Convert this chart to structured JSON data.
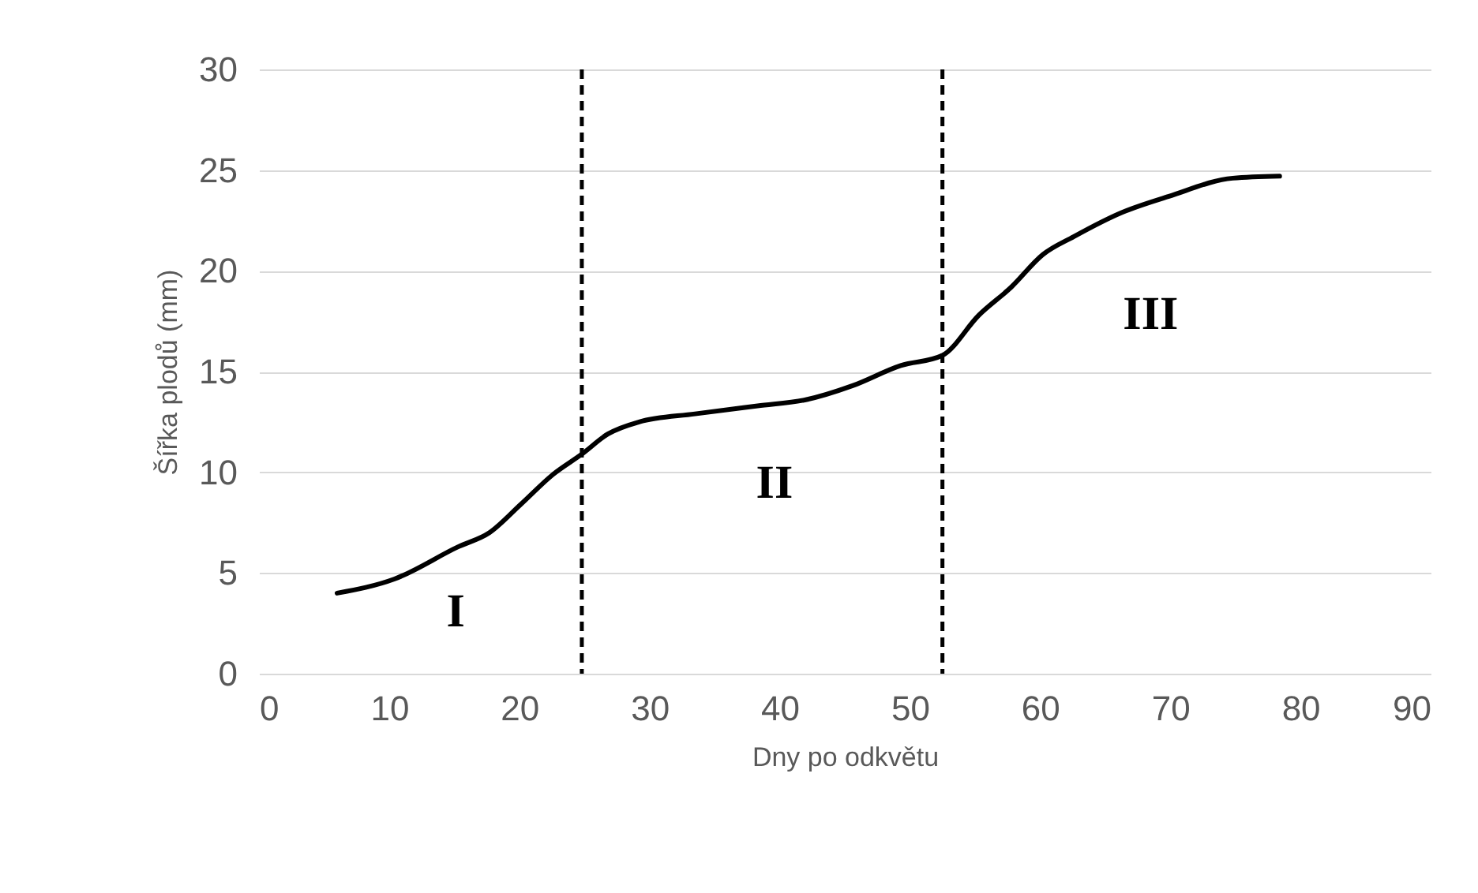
{
  "chart_data": {
    "type": "line",
    "xlabel": "Dny po odkvětu",
    "ylabel": "Šířka plodů (mm)",
    "x": [
      6,
      10.4,
      15.3,
      17.7,
      20.1,
      22.6,
      24.8,
      26.8,
      29.2,
      33.5,
      38.3,
      42,
      45.6,
      49.3,
      52.5,
      55.3,
      57.8,
      60.2,
      62.6,
      66.3,
      69.9,
      74.8,
      78.4
    ],
    "series": [
      {
        "color": "#000000",
        "values": [
          4.0,
          4.7,
          6.3,
          7.0,
          8.4,
          9.9,
          10.9,
          11.9,
          12.5,
          12.9,
          13.3,
          13.6,
          14.3,
          15.3,
          15.8,
          17.8,
          19.2,
          20.8,
          21.7,
          22.9,
          23.7,
          24.6,
          24.7
        ]
      }
    ],
    "xlim": [
      0,
      90
    ],
    "xticks": [
      0,
      10,
      20,
      30,
      40,
      50,
      60,
      70,
      80,
      90
    ],
    "ylim": [
      0,
      30
    ],
    "yticks": [
      0,
      5,
      10,
      15,
      20,
      25,
      30
    ],
    "grid": "y",
    "marker": "none",
    "line_style": "solid",
    "ref_lines": [
      {
        "axis": "x",
        "value": 24.8,
        "color": "#000000",
        "line_style": "dashed"
      },
      {
        "axis": "x",
        "value": 52.5,
        "color": "#000000",
        "line_style": "dashed"
      }
    ],
    "annotations": [
      "I",
      "II",
      "III"
    ]
  }
}
